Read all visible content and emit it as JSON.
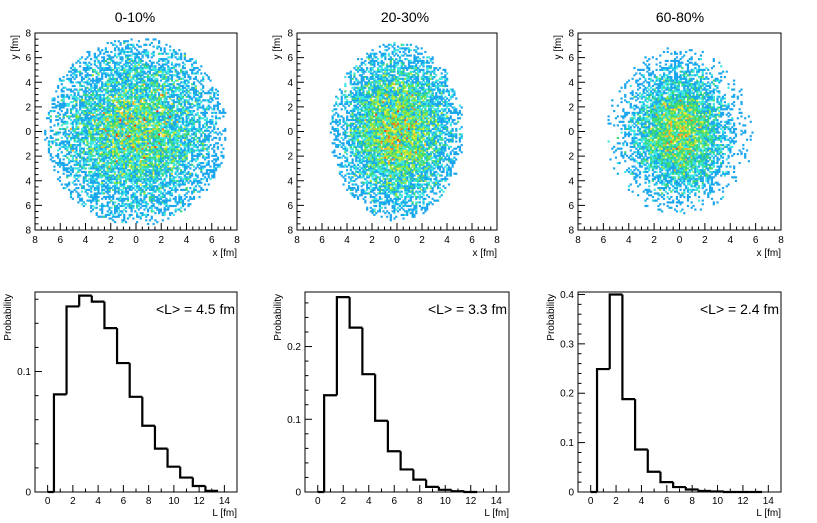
{
  "chart_data": [
    {
      "type": "heatmap",
      "title": "0-10%",
      "xlabel": "x [fm]",
      "ylabel": "y [fm]",
      "xlim": [
        -8,
        8
      ],
      "ylim": [
        -8,
        8
      ],
      "x_tick_labels": [
        "8",
        "6",
        "4",
        "2",
        "0",
        "2",
        "4",
        "6",
        "8"
      ],
      "y_tick_labels": [
        "8",
        "6",
        "4",
        "2",
        "0",
        "2",
        "4",
        "6",
        "8"
      ],
      "distribution": {
        "sigma_x": 3.3,
        "sigma_y": 3.5,
        "radius_x": 7.2,
        "radius_y": 7.6,
        "points": 9500
      },
      "color_scale": [
        "#2b6be0",
        "#1aa7ee",
        "#3fe6e0",
        "#3cd87a",
        "#9be83c",
        "#f2e93a",
        "#ffb028",
        "#ff6a18",
        "#ff2a10"
      ]
    },
    {
      "type": "heatmap",
      "title": "20-30%",
      "xlabel": "x [fm]",
      "ylabel": "y [fm]",
      "xlim": [
        -8,
        8
      ],
      "ylim": [
        -8,
        8
      ],
      "x_tick_labels": [
        "8",
        "6",
        "4",
        "2",
        "0",
        "2",
        "4",
        "6",
        "8"
      ],
      "y_tick_labels": [
        "8",
        "6",
        "4",
        "2",
        "0",
        "2",
        "4",
        "6",
        "8"
      ],
      "distribution": {
        "sigma_x": 2.3,
        "sigma_y": 3.2,
        "radius_x": 5.3,
        "radius_y": 7.2,
        "points": 8500
      },
      "color_scale": [
        "#2b6be0",
        "#1aa7ee",
        "#3fe6e0",
        "#3cd87a",
        "#9be83c",
        "#f2e93a",
        "#ffb028",
        "#ff6a18",
        "#ff2a10"
      ]
    },
    {
      "type": "heatmap",
      "title": "60-80%",
      "xlabel": "x [fm]",
      "ylabel": "y [fm]",
      "xlim": [
        -8,
        8
      ],
      "ylim": [
        -8,
        8
      ],
      "x_tick_labels": [
        "8",
        "6",
        "4",
        "2",
        "0",
        "2",
        "4",
        "6",
        "8"
      ],
      "y_tick_labels": [
        "8",
        "6",
        "4",
        "2",
        "0",
        "2",
        "4",
        "6",
        "8"
      ],
      "distribution": {
        "sigma_x": 1.9,
        "sigma_y": 2.5,
        "radius_x": 5.8,
        "radius_y": 6.8,
        "points": 6500
      },
      "color_scale": [
        "#2b6be0",
        "#1aa7ee",
        "#3fe6e0",
        "#3cd87a",
        "#9be83c",
        "#f2e93a",
        "#ffb028",
        "#ff6a18",
        "#ff2a10"
      ]
    },
    {
      "type": "bar",
      "annotation": "<L> = 4.5 fm",
      "xlabel": "L [fm]",
      "ylabel": "Probability",
      "xlim": [
        -1,
        15
      ],
      "ylim": [
        0,
        0.166
      ],
      "x_ticks": [
        0,
        2,
        4,
        6,
        8,
        10,
        12,
        14
      ],
      "y_ticks": [
        0,
        0.1
      ],
      "y_tick_labels": [
        "0",
        "0.1"
      ],
      "bin_edges": [
        0,
        0.5,
        1.5,
        2.5,
        3.5,
        4.5,
        5.5,
        6.5,
        7.5,
        8.5,
        9.5,
        10.5,
        11.5,
        12.5,
        13.5
      ],
      "values": [
        0,
        0.081,
        0.154,
        0.163,
        0.158,
        0.136,
        0.107,
        0.079,
        0.055,
        0.036,
        0.021,
        0.012,
        0.005,
        0.001
      ]
    },
    {
      "type": "bar",
      "annotation": "<L> = 3.3 fm",
      "xlabel": "L [fm]",
      "ylabel": "Probability",
      "xlim": [
        -1,
        15
      ],
      "ylim": [
        0,
        0.275
      ],
      "x_ticks": [
        0,
        2,
        4,
        6,
        8,
        10,
        12,
        14
      ],
      "y_ticks": [
        0,
        0.1,
        0.2
      ],
      "y_tick_labels": [
        "0",
        "0.1",
        "0.2"
      ],
      "bin_edges": [
        0,
        0.5,
        1.5,
        2.5,
        3.5,
        4.5,
        5.5,
        6.5,
        7.5,
        8.5,
        9.5,
        10.5,
        11.5,
        12.5
      ],
      "values": [
        0,
        0.133,
        0.268,
        0.226,
        0.162,
        0.098,
        0.056,
        0.031,
        0.017,
        0.007,
        0.003,
        0.001,
        0.0
      ]
    },
    {
      "type": "bar",
      "annotation": "<L> = 2.4 fm",
      "xlabel": "L [fm]",
      "ylabel": "Probability",
      "xlim": [
        -1,
        15
      ],
      "ylim": [
        0,
        0.405
      ],
      "x_ticks": [
        0,
        2,
        4,
        6,
        8,
        10,
        12,
        14
      ],
      "y_ticks": [
        0,
        0.1,
        0.2,
        0.3,
        0.4
      ],
      "y_tick_labels": [
        "0",
        "0.1",
        "0.2",
        "0.3",
        "0.4"
      ],
      "bin_edges": [
        0,
        0.5,
        1.5,
        2.5,
        3.5,
        4.5,
        5.5,
        6.5,
        7.5,
        8.5,
        9.5,
        10.5,
        11.5,
        12.5,
        13.5
      ],
      "values": [
        0,
        0.249,
        0.4,
        0.188,
        0.086,
        0.041,
        0.02,
        0.01,
        0.005,
        0.002,
        0.001,
        0.0,
        0.0,
        0.0
      ]
    }
  ]
}
